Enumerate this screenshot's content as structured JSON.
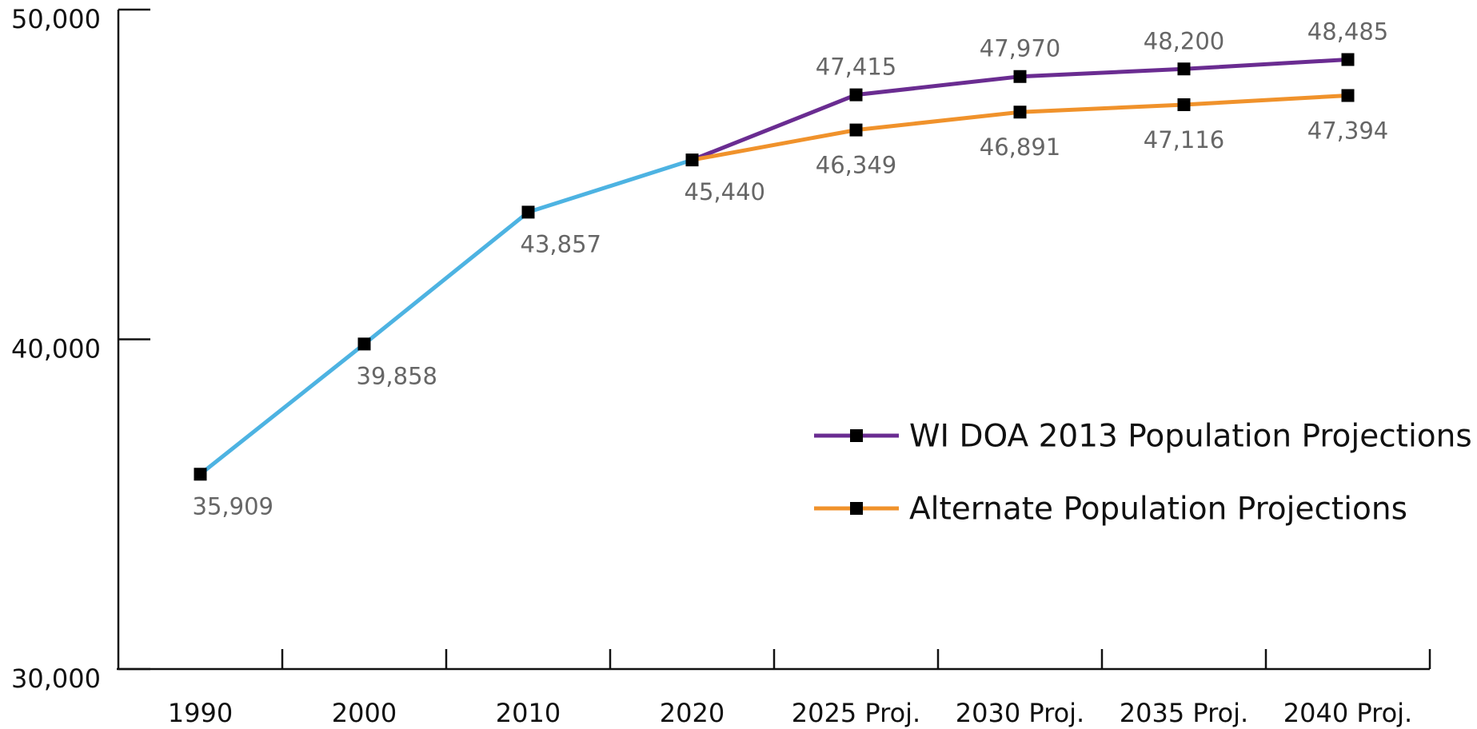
{
  "chart_data": {
    "type": "line",
    "categories": [
      "1990",
      "2000",
      "2010",
      "2020",
      "2025 Proj.",
      "2030 Proj.",
      "2035 Proj.",
      "2040 Proj."
    ],
    "series": [
      {
        "color": "#4db3e2",
        "values": [
          35909,
          39858,
          43857,
          45440,
          null,
          null,
          null,
          null
        ],
        "value_labels": [
          "35,909",
          "39,858",
          "43,857",
          "45,440",
          null,
          null,
          null,
          null
        ]
      },
      {
        "name": "WI DOA 2013 Population Projections",
        "color": "#6a2c91",
        "values": [
          null,
          null,
          null,
          45440,
          47415,
          47970,
          48200,
          48485
        ],
        "value_labels": [
          null,
          null,
          null,
          null,
          "47,415",
          "47,970",
          "48,200",
          "48,485"
        ]
      },
      {
        "name": "Alternate Population Projections",
        "color": "#f0922b",
        "values": [
          null,
          null,
          null,
          45440,
          46349,
          46891,
          47116,
          47394
        ],
        "value_labels": [
          null,
          null,
          null,
          null,
          "46,349",
          "46,891",
          "47,116",
          "47,394"
        ]
      }
    ],
    "ylim": [
      30000,
      50000
    ],
    "yticks": [
      {
        "value": 30000,
        "label": "30,000"
      },
      {
        "value": 40000,
        "label": "40,000"
      },
      {
        "value": 50000,
        "label": "50,000"
      }
    ],
    "grid": false
  }
}
